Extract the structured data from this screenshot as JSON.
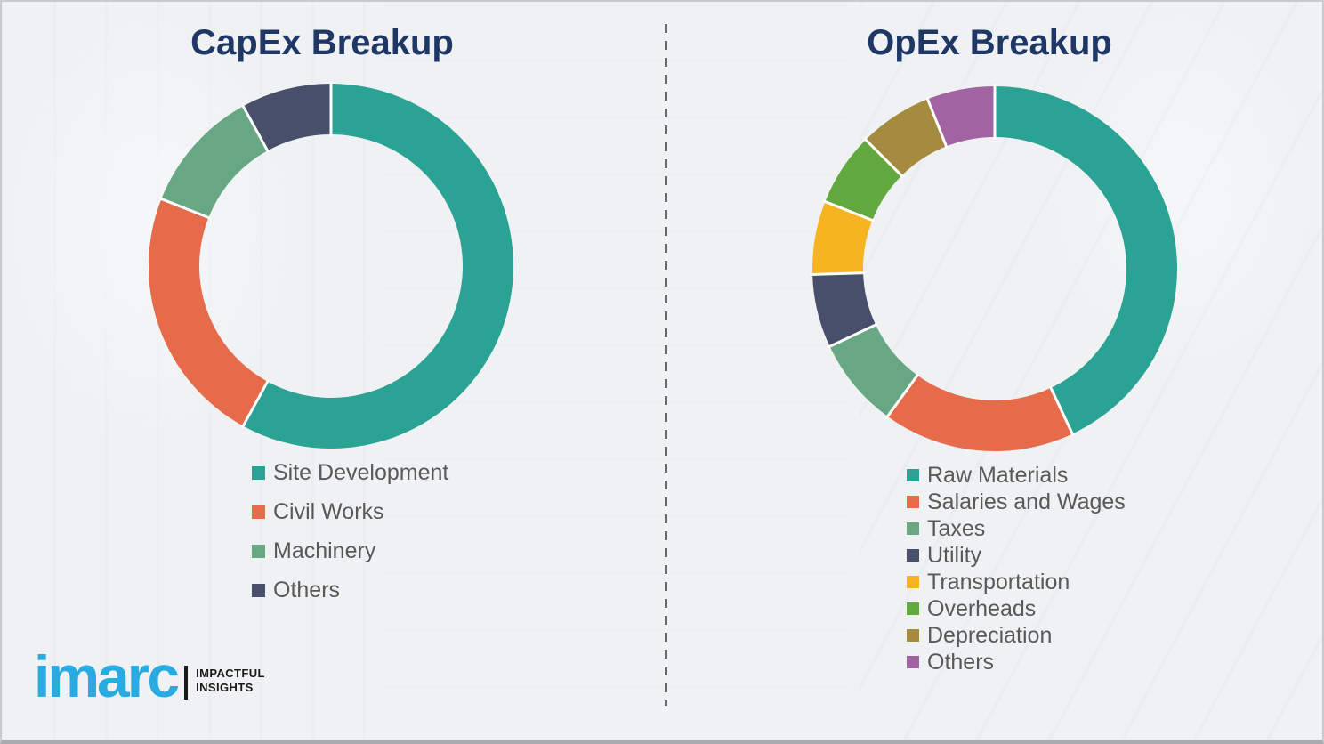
{
  "style": {
    "background": "#eff1f3",
    "title_color": "#1f3765",
    "legend_text_color": "#595959",
    "divider_color": "#6a6a6a",
    "segment_gap_color": "#ffffff"
  },
  "chart_data": [
    {
      "type": "pie",
      "subtype": "donut",
      "title": "CapEx Breakup",
      "categories": [
        "Site Development",
        "Civil Works",
        "Machinery",
        "Others"
      ],
      "values": [
        58,
        23,
        11,
        8
      ],
      "colors": [
        "#2aa395",
        "#e56b4a",
        "#67a783",
        "#474f6a"
      ],
      "start_angle_deg": 0,
      "direction": "clockwise",
      "legend_position": "below-left",
      "data_labels": false
    },
    {
      "type": "pie",
      "subtype": "donut",
      "title": "OpEx Breakup",
      "categories": [
        "Raw Materials",
        "Salaries and Wages",
        "Taxes",
        "Utility",
        "Transportation",
        "Overheads",
        "Depreciation",
        "Others"
      ],
      "values": [
        43,
        17,
        8,
        6.5,
        6.5,
        6.5,
        6.5,
        6
      ],
      "colors": [
        "#2aa395",
        "#e56b4a",
        "#67a783",
        "#474f6a",
        "#f6b520",
        "#61a83e",
        "#a58b3f",
        "#a263a3"
      ],
      "start_angle_deg": 0,
      "direction": "clockwise",
      "legend_position": "below-left",
      "data_labels": false
    }
  ],
  "logo": {
    "brand": "imarc",
    "brand_color": "#29abe2",
    "tagline": [
      "IMPACTFUL",
      "INSIGHTS"
    ]
  }
}
